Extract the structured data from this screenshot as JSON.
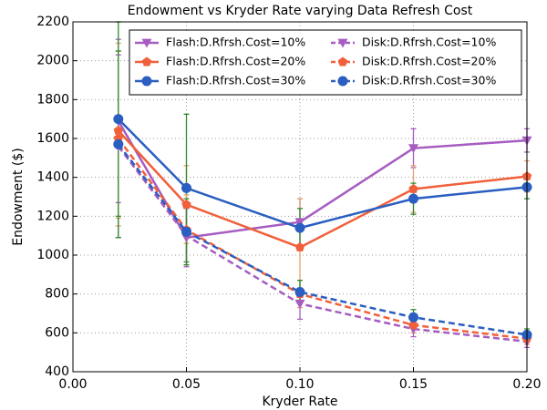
{
  "chart_data": {
    "type": "line",
    "title": "Endowment vs Kryder Rate varying Data Refresh Cost",
    "x_label": "Kryder Rate",
    "y_label": "Endowment ($)",
    "x": [
      0.02,
      0.05,
      0.1,
      0.15,
      0.2
    ],
    "xlim": [
      0,
      0.2
    ],
    "xticks": [
      {
        "value": 0,
        "label": "0.00"
      },
      {
        "value": 0.05,
        "label": "0.05"
      },
      {
        "value": 0.1,
        "label": "0.10"
      },
      {
        "value": 0.15,
        "label": "0.15"
      },
      {
        "value": 0.2,
        "label": "0.20"
      }
    ],
    "ylim": [
      400,
      2200
    ],
    "yticks": [
      400,
      600,
      800,
      1000,
      1200,
      1400,
      1600,
      1800,
      2000,
      2200
    ],
    "grid": true,
    "legend": "upper right",
    "series": [
      {
        "name": "Flash:D.Rfrsh.Cost=10%",
        "color": "#a65cc0",
        "error_color": "#a65cc0",
        "linestyle": "solid",
        "marker": "triangle-down",
        "values": [
          1690,
          1090,
          1170,
          1550,
          1590
        ],
        "errors": [
          420,
          150,
          120,
          100,
          60
        ]
      },
      {
        "name": "Flash:D.Rfrsh.Cost=20%",
        "color": "#f0603a",
        "error_color": "#e8a070",
        "linestyle": "solid",
        "marker": "pentagon",
        "values": [
          1640,
          1260,
          1040,
          1340,
          1405
        ],
        "errors": [
          450,
          200,
          250,
          120,
          80
        ]
      },
      {
        "name": "Flash:D.Rfrsh.Cost=30%",
        "color": "#2a5ec0",
        "error_color": "#2e8b2e",
        "linestyle": "solid",
        "marker": "circle",
        "values": [
          1700,
          1345,
          1140,
          1290,
          1350
        ],
        "errors": [
          500,
          380,
          100,
          80,
          60
        ]
      },
      {
        "name": "Disk:D.Rfrsh.Cost=10%",
        "color": "#a65cc0",
        "error_color": "#a65cc0",
        "linestyle": "dashed",
        "marker": "triangle-down",
        "values": [
          1560,
          1100,
          750,
          620,
          555
        ],
        "errors": [
          470,
          150,
          80,
          40,
          30
        ]
      },
      {
        "name": "Disk:D.Rfrsh.Cost=20%",
        "color": "#f0603a",
        "error_color": "#e8a070",
        "linestyle": "dashed",
        "marker": "pentagon",
        "values": [
          1600,
          1130,
          800,
          640,
          570
        ],
        "errors": [
          450,
          180,
          70,
          40,
          30
        ]
      },
      {
        "name": "Disk:D.Rfrsh.Cost=30%",
        "color": "#2a5ec0",
        "error_color": "#2e8b2e",
        "linestyle": "dashed",
        "marker": "circle",
        "values": [
          1570,
          1120,
          810,
          680,
          590
        ],
        "errors": [
          480,
          170,
          60,
          40,
          30
        ]
      }
    ]
  }
}
